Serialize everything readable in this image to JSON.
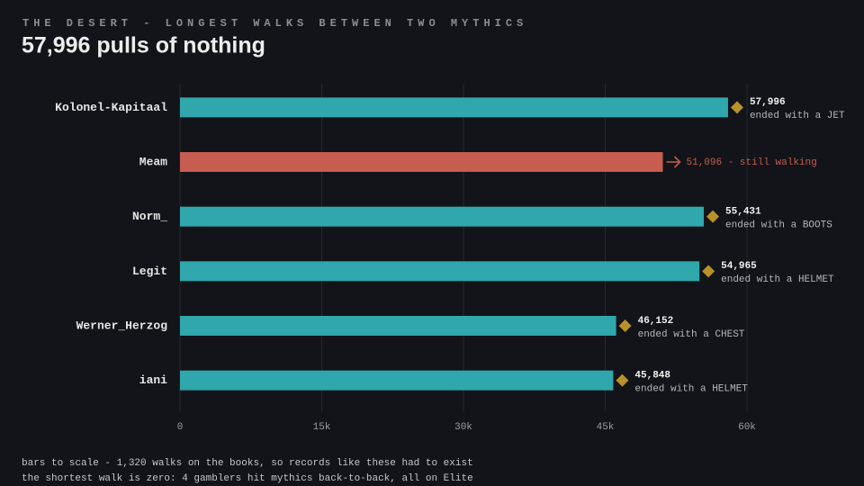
{
  "chart_data": {
    "type": "bar",
    "orientation": "horizontal",
    "kicker": "THE DESERT - LONGEST WALKS BETWEEN TWO MYTHICS",
    "title": "57,996 pulls of nothing",
    "categories": [
      "Kolonel-Kapitaal",
      "Meam",
      "Norm_",
      "Legit",
      "Werner_Herzog",
      "iani"
    ],
    "values": [
      57996,
      51096,
      55431,
      54965,
      46152,
      45848
    ],
    "value_labels": [
      "57,996",
      "51,096 - still walking",
      "55,431",
      "54,965",
      "46,152",
      "45,848"
    ],
    "notes": [
      "ended with a JET",
      null,
      "ended with a BOOTS",
      "ended with a HELMET",
      "ended with a CHEST",
      "ended with a HELMET"
    ],
    "colors": [
      "#2fa7ac",
      "#c65d50",
      "#2fa7ac",
      "#2fa7ac",
      "#2fa7ac",
      "#2fa7ac"
    ],
    "marker_color": "#b8912a",
    "xlim": [
      0,
      60000
    ],
    "xticks": [
      0,
      {
        "value": 15000,
        "label": "15k"
      },
      {
        "value": 30000,
        "label": "30k"
      },
      {
        "value": 45000,
        "label": "45k"
      },
      {
        "value": 60000,
        "label": "60k"
      }
    ],
    "grid": true,
    "footnotes": [
      "bars to scale - 1,320 walks on the books, so records like these had to exist",
      "the shortest walk is zero: 4 gamblers hit mythics back-to-back, all on Elite"
    ]
  }
}
